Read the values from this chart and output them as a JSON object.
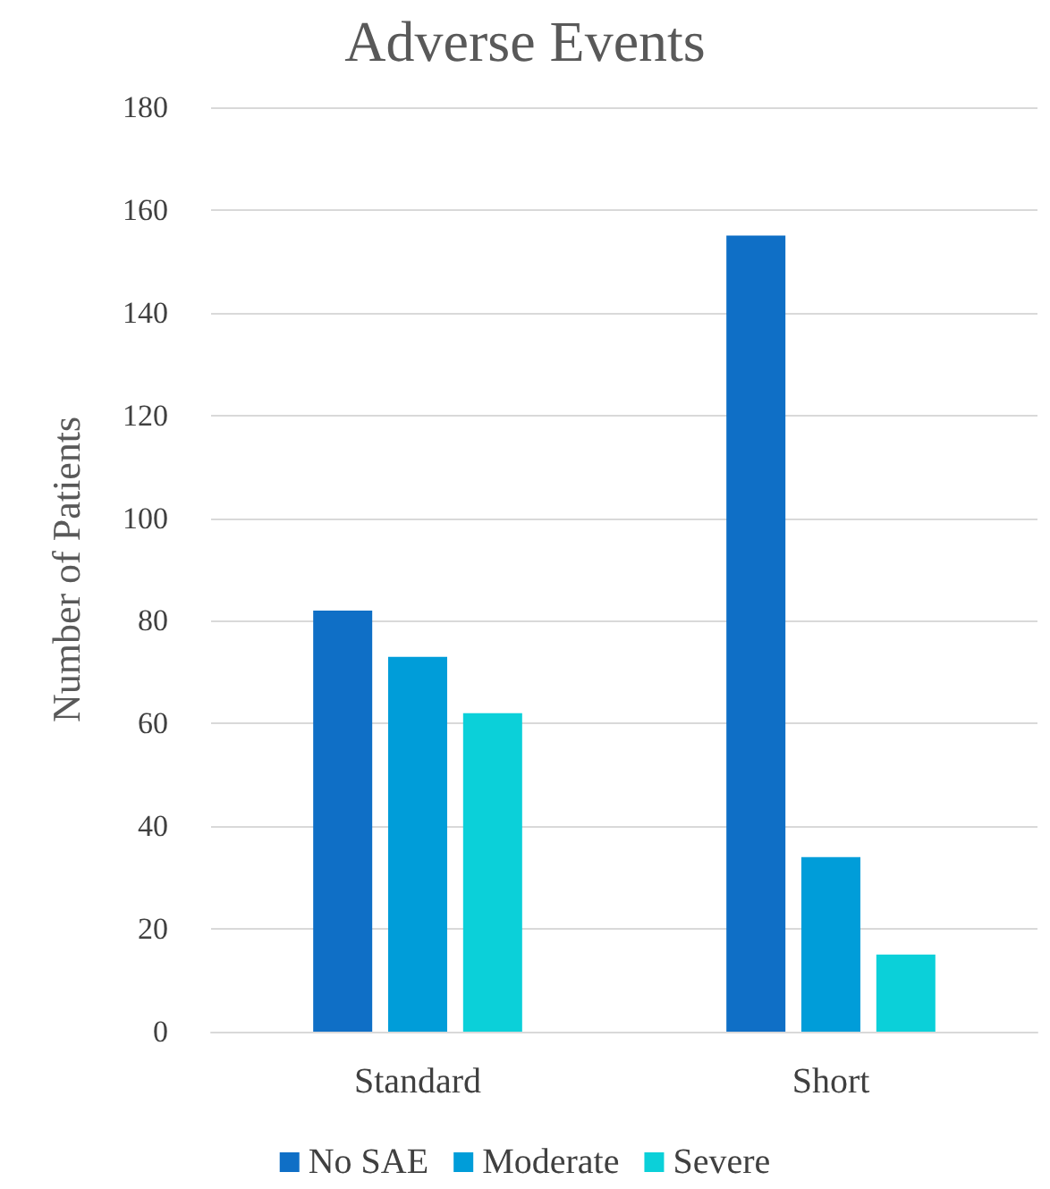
{
  "chart_data": {
    "type": "bar",
    "title": "Adverse Events",
    "ylabel": "Number of Patients",
    "categories": [
      "Standard",
      "Short"
    ],
    "series": [
      {
        "name": "No SAE",
        "color": "#0f6fc6",
        "values": [
          82,
          155
        ]
      },
      {
        "name": "Moderate",
        "color": "#009dd9",
        "values": [
          73,
          34
        ]
      },
      {
        "name": "Severe",
        "color": "#0bd0d9",
        "values": [
          62,
          15
        ]
      }
    ],
    "ylim": [
      0,
      180
    ],
    "yticks": [
      0,
      20,
      40,
      60,
      80,
      100,
      120,
      140,
      160,
      180
    ],
    "grid": "y",
    "legend": "bottom"
  }
}
